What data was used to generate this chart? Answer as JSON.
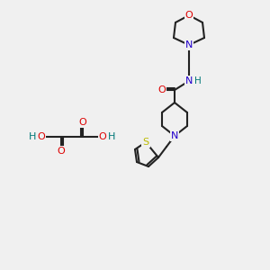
{
  "bg_color": "#f0f0f0",
  "atom_colors": {
    "C": "#000000",
    "N": "#2200cc",
    "O": "#dd0000",
    "S": "#bbbb00",
    "H": "#007777"
  },
  "bond_color": "#222222",
  "bond_lw": 1.5,
  "font_size": 8.0
}
